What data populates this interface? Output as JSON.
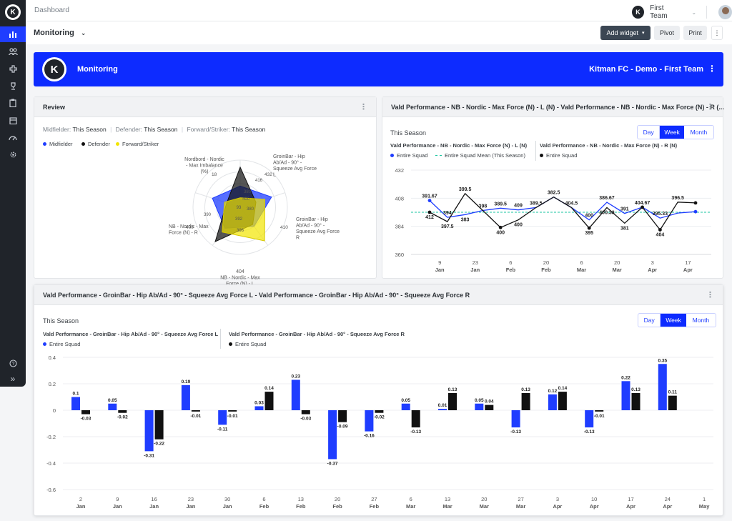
{
  "nav": {
    "breadcrumb": "Dashboard",
    "team_name": "First Team"
  },
  "toolbar": {
    "title": "Monitoring",
    "add_widget": "Add widget",
    "pivot": "Pivot",
    "print": "Print"
  },
  "banner": {
    "title": "Monitoring",
    "org": "Kitman FC - Demo - First Team"
  },
  "review": {
    "title": "Review",
    "filters": [
      {
        "group": "Midfielder:",
        "value": "This Season"
      },
      {
        "group": "Defender:",
        "value": "This Season"
      },
      {
        "group": "Forward/Striker:",
        "value": "This Season"
      }
    ],
    "legend": [
      {
        "name": "Midfielder",
        "color": "#1f3dff"
      },
      {
        "name": "Defender",
        "color": "#111111"
      },
      {
        "name": "Forward/Striker",
        "color": "#f2e500"
      }
    ],
    "axes": [
      {
        "label": [
          "Nordbord - Nordic",
          "- Max Imbalance",
          "(%)"
        ],
        "max": "18"
      },
      {
        "label": [
          "GroinBar - Hip",
          "Ab/Ad - 90° -",
          "Squeeze Avg Force",
          "L"
        ],
        "max": "432"
      },
      {
        "label": [
          "GroinBar - Hip",
          "Ab/Ad - 90° -",
          "Squeeze Avg Force",
          "R"
        ],
        "max": "410"
      },
      {
        "label": [
          "404",
          "NB - Nordic - Max",
          "Force (N) - L"
        ],
        "max": "404"
      },
      {
        "label": [
          "NB - Nordic - Max",
          "Force (N) - R"
        ],
        "max": "400"
      }
    ],
    "inner_ticks": [
      "416",
      "400",
      "380",
      "392",
      "396",
      "390",
      "93",
      "380"
    ],
    "series": [
      {
        "name": "Midfielder",
        "values": [
          0.45,
          0.7,
          0.5,
          0.55,
          0.62
        ]
      },
      {
        "name": "Defender",
        "values": [
          0.85,
          0.35,
          0.45,
          0.9,
          0.3
        ]
      },
      {
        "name": "Forward/Striker",
        "values": [
          0.2,
          0.55,
          0.88,
          0.65,
          0.35
        ]
      }
    ]
  },
  "nordic": {
    "title": "Vald Performance - NB - Nordic - Max Force (N) - L (N) - Vald Performance - NB - Nordic - Max Force (N) - R (...",
    "period": "This Season",
    "ranges": [
      "Day",
      "Week",
      "Month"
    ],
    "active_range": "Week",
    "metric_l": "Vald Performance - NB - Nordic - Max Force (N) - L (N)",
    "metric_r": "Vald Performance - NB - Nordic - Max Force (N) - R (N)",
    "legend_squad": "Entire Squad",
    "legend_mean": "Entire Squad Mean (This Season)"
  },
  "groin": {
    "title": "Vald Performance - GroinBar - Hip Ab/Ad - 90° - Squeeze Avg Force L - Vald Performance - GroinBar - Hip Ab/Ad - 90° - Squeeze Avg Force R",
    "period": "This Season",
    "ranges": [
      "Day",
      "Week",
      "Month"
    ],
    "active_range": "Week",
    "metric_l": "Vald Performance - GroinBar - Hip Ab/Ad - 90° - Squeeze Avg Force L",
    "metric_r": "Vald Performance - GroinBar - Hip Ab/Ad - 90° - Squeeze Avg Force R",
    "legend_squad": "Entire Squad"
  },
  "chart_data": [
    {
      "type": "line",
      "title": "Vald Performance - NB - Nordic - Max Force (N) - L (N) - Vald Performance - NB - Nordic - Max Force (N) - R (...",
      "ylim": [
        360,
        432
      ],
      "yticks": [
        360,
        384,
        408,
        432
      ],
      "x": [
        "2025-01-05",
        "2025-01-12",
        "2025-01-19",
        "2025-01-26",
        "2025-02-02",
        "2025-02-09",
        "2025-02-16",
        "2025-02-23",
        "2025-03-02",
        "2025-03-09",
        "2025-03-16",
        "2025-03-23",
        "2025-03-30",
        "2025-04-06",
        "2025-04-13",
        "2025-04-20"
      ],
      "xticks": [
        {
          "day": "9",
          "month": "Jan",
          "at": "2025-01-09"
        },
        {
          "day": "23",
          "month": "Jan",
          "at": "2025-01-23"
        },
        {
          "day": "6",
          "month": "Feb",
          "at": "2025-02-06"
        },
        {
          "day": "20",
          "month": "Feb",
          "at": "2025-02-20"
        },
        {
          "day": "6",
          "month": "Mar",
          "at": "2025-03-06"
        },
        {
          "day": "20",
          "month": "Mar",
          "at": "2025-03-20"
        },
        {
          "day": "3",
          "month": "Apr",
          "at": "2025-04-03"
        },
        {
          "day": "17",
          "month": "Apr",
          "at": "2025-04-17"
        }
      ],
      "series": [
        {
          "name": "Entire Squad",
          "color": "#1f3dff",
          "values": [
            406,
            391.67,
            394,
            397.5,
            399.5,
            398,
            400,
            409,
            400,
            389.5,
            404.5,
            395,
            400.33,
            391,
            395.33,
            396.5
          ]
        },
        {
          "name": "Entire Squad",
          "color": "#111111",
          "values": [
            396,
            388,
            412,
            397.5,
            383,
            389.5,
            400,
            409,
            400,
            382.5,
            400,
            386.67,
            400.33,
            381,
            404.67,
            404
          ]
        }
      ],
      "labels": [
        "391.67",
        "412",
        "394",
        "397.5",
        "399.5",
        "383",
        "398",
        "389.5",
        "400",
        "409",
        "400",
        "389.5",
        "382.5",
        "404.5",
        "400",
        "395",
        "386.67",
        "400.33",
        "391",
        "381",
        "404.67",
        "395.33",
        "404",
        "396.5"
      ],
      "mean": 396
    },
    {
      "type": "bar",
      "title": "Vald Performance - GroinBar - Hip Ab/Ad - 90° - Squeeze Avg Force L - Vald Performance - GroinBar - Hip Ab/Ad - 90° - Squeeze Avg Force R",
      "ylim": [
        -0.6,
        0.4
      ],
      "yticks": [
        -0.6,
        -0.4,
        -0.2,
        0,
        0.2,
        0.4
      ],
      "categories": [
        {
          "day": "2",
          "month": "Jan"
        },
        {
          "day": "9",
          "month": "Jan"
        },
        {
          "day": "16",
          "month": "Jan"
        },
        {
          "day": "23",
          "month": "Jan"
        },
        {
          "day": "30",
          "month": "Jan"
        },
        {
          "day": "6",
          "month": "Feb"
        },
        {
          "day": "13",
          "month": "Feb"
        },
        {
          "day": "20",
          "month": "Feb"
        },
        {
          "day": "27",
          "month": "Feb"
        },
        {
          "day": "6",
          "month": "Mar"
        },
        {
          "day": "13",
          "month": "Mar"
        },
        {
          "day": "20",
          "month": "Mar"
        },
        {
          "day": "27",
          "month": "Mar"
        },
        {
          "day": "3",
          "month": "Apr"
        },
        {
          "day": "10",
          "month": "Apr"
        },
        {
          "day": "17",
          "month": "Apr"
        },
        {
          "day": "24",
          "month": "Apr"
        },
        {
          "day": "1",
          "month": "May"
        }
      ],
      "series": [
        {
          "name": "Entire Squad",
          "color": "#1f3dff",
          "values": [
            0.1,
            0.05,
            -0.31,
            0.19,
            -0.11,
            0.03,
            0.23,
            -0.37,
            -0.16,
            0.05,
            0.01,
            0.05,
            -0.13,
            0.12,
            -0.13,
            0.22,
            0.35,
            null
          ]
        },
        {
          "name": "Entire Squad",
          "color": "#111111",
          "values": [
            -0.03,
            -0.02,
            -0.22,
            -0.01,
            -0.01,
            0.14,
            -0.03,
            -0.09,
            -0.02,
            -0.13,
            0.13,
            0.04,
            0.13,
            0.14,
            -0.01,
            0.13,
            0.11,
            null
          ]
        }
      ]
    }
  ]
}
